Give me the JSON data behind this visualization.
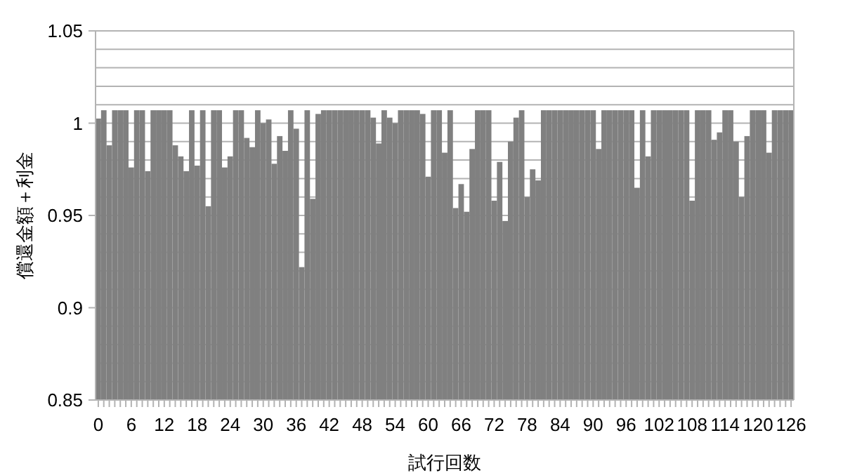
{
  "chart_data": {
    "type": "bar",
    "xlabel": "試行回数",
    "ylabel": "償還金額＋利金",
    "categories": [
      "0",
      null,
      null,
      null,
      null,
      null,
      "6",
      null,
      null,
      null,
      null,
      null,
      "12",
      null,
      null,
      null,
      null,
      null,
      "18",
      null,
      null,
      null,
      null,
      null,
      "24",
      null,
      null,
      null,
      null,
      null,
      "30",
      null,
      null,
      null,
      null,
      null,
      "36",
      null,
      null,
      null,
      null,
      null,
      "42",
      null,
      null,
      null,
      null,
      null,
      "48",
      null,
      null,
      null,
      null,
      null,
      "54",
      null,
      null,
      null,
      null,
      null,
      "60",
      null,
      null,
      null,
      null,
      null,
      "66",
      null,
      null,
      null,
      null,
      null,
      "72",
      null,
      null,
      null,
      null,
      null,
      "78",
      null,
      null,
      null,
      null,
      null,
      "84",
      null,
      null,
      null,
      null,
      null,
      "90",
      null,
      null,
      null,
      null,
      null,
      "96",
      null,
      null,
      null,
      null,
      null,
      "102",
      null,
      null,
      null,
      null,
      null,
      "108",
      null,
      null,
      null,
      null,
      null,
      "114",
      null,
      null,
      null,
      null,
      null,
      "120",
      null,
      null,
      null,
      null,
      null,
      "126"
    ],
    "values": [
      1.0025,
      1.007,
      0.988,
      1.007,
      1.007,
      1.007,
      0.976,
      1.007,
      1.007,
      0.974,
      1.007,
      1.007,
      1.007,
      1.007,
      0.988,
      0.982,
      0.974,
      1.007,
      0.977,
      1.007,
      0.955,
      1.007,
      1.007,
      0.976,
      0.982,
      1.007,
      1.007,
      0.992,
      0.987,
      1.007,
      1.0,
      1.002,
      0.978,
      0.993,
      0.985,
      1.007,
      0.997,
      0.922,
      1.007,
      0.959,
      1.005,
      1.007,
      1.007,
      1.007,
      1.007,
      1.007,
      1.007,
      1.007,
      1.007,
      1.007,
      1.003,
      0.989,
      1.007,
      1.003,
      1.0,
      1.007,
      1.007,
      1.007,
      1.007,
      1.005,
      0.971,
      1.007,
      1.007,
      0.984,
      1.007,
      0.954,
      0.967,
      0.952,
      0.986,
      1.007,
      1.007,
      1.007,
      0.958,
      0.979,
      0.947,
      0.99,
      1.003,
      1.007,
      0.96,
      0.975,
      0.969,
      1.007,
      1.007,
      1.007,
      1.007,
      1.007,
      1.007,
      1.007,
      1.007,
      1.007,
      1.007,
      0.986,
      1.007,
      1.007,
      1.007,
      1.007,
      1.007,
      1.007,
      0.965,
      1.007,
      0.982,
      1.007,
      1.007,
      1.007,
      1.007,
      1.007,
      1.007,
      1.007,
      0.958,
      1.007,
      1.007,
      1.007,
      0.991,
      0.995,
      1.007,
      1.007,
      0.99,
      0.96,
      0.993,
      1.007,
      1.007,
      1.007,
      0.984,
      1.007,
      1.007,
      1.007,
      1.007
    ],
    "color": "#808080",
    "ylim": [
      0.85,
      1.05
    ],
    "yticks": [
      0.85,
      {
        "value": 0.86,
        "label": null
      },
      {
        "value": 0.87,
        "label": null
      },
      {
        "value": 0.88,
        "label": null
      },
      {
        "value": 0.89,
        "label": null
      },
      0.9,
      {
        "value": 0.91,
        "label": null
      },
      {
        "value": 0.92,
        "label": null
      },
      {
        "value": 0.93,
        "label": null
      },
      {
        "value": 0.94,
        "label": null
      },
      0.95,
      {
        "value": 0.96,
        "label": null
      },
      {
        "value": 0.97,
        "label": null
      },
      {
        "value": 0.98,
        "label": null
      },
      {
        "value": 0.99,
        "label": null
      },
      1,
      {
        "value": 1.01,
        "label": null
      },
      {
        "value": 1.02,
        "label": null
      },
      {
        "value": 1.03,
        "label": null
      },
      {
        "value": 1.04,
        "label": null
      },
      1.05
    ],
    "grid": "y"
  }
}
